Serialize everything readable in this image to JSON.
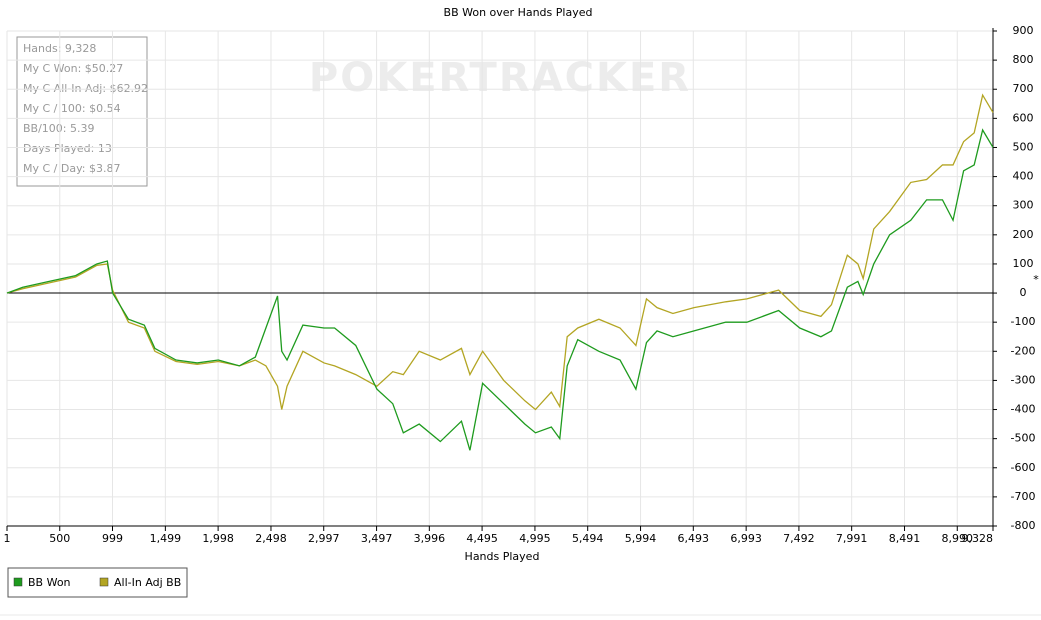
{
  "chart_data": {
    "type": "line",
    "title": "BB Won over Hands Played",
    "xlabel": "Hands Played",
    "axis_marker": "*",
    "watermark": "POKERTRACKER",
    "info": [
      "Hands: 9,328",
      "My C Won: $50.27",
      "My C All-In Adj: $62.92",
      "My C / 100: $0.54",
      "BB/100: 5.39",
      "Days Played: 13",
      "My C / Day: $3.87"
    ],
    "x": [
      1,
      150,
      400,
      650,
      850,
      950,
      1000,
      1150,
      1300,
      1400,
      1600,
      1800,
      2000,
      2200,
      2350,
      2450,
      2560,
      2600,
      2650,
      2800,
      3000,
      3100,
      3300,
      3500,
      3650,
      3750,
      3900,
      4100,
      4300,
      4380,
      4500,
      4700,
      4900,
      5000,
      5150,
      5230,
      5300,
      5400,
      5600,
      5800,
      5950,
      6050,
      6150,
      6300,
      6500,
      6800,
      7000,
      7300,
      7500,
      7700,
      7800,
      7950,
      8050,
      8100,
      8200,
      8350,
      8550,
      8700,
      8850,
      8950,
      9050,
      9150,
      9230,
      9328
    ],
    "series": [
      {
        "name": "BB Won",
        "color": "#1e9b1e",
        "values": [
          0,
          20,
          40,
          60,
          100,
          110,
          0,
          -90,
          -110,
          -190,
          -230,
          -240,
          -230,
          -250,
          -220,
          -120,
          -10,
          -200,
          -230,
          -110,
          -120,
          -120,
          -180,
          -330,
          -380,
          -480,
          -450,
          -510,
          -440,
          -540,
          -310,
          -380,
          -450,
          -480,
          -460,
          -500,
          -250,
          -160,
          -200,
          -230,
          -330,
          -170,
          -130,
          -150,
          -130,
          -100,
          -100,
          -60,
          -120,
          -150,
          -130,
          20,
          40,
          -5,
          100,
          200,
          250,
          320,
          320,
          250,
          420,
          440,
          560,
          500
        ]
      },
      {
        "name": "All-In Adj BB",
        "color": "#b3a523",
        "values": [
          0,
          15,
          35,
          55,
          95,
          100,
          10,
          -100,
          -120,
          -200,
          -235,
          -245,
          -235,
          -250,
          -230,
          -250,
          -320,
          -400,
          -320,
          -200,
          -240,
          -250,
          -280,
          -320,
          -270,
          -280,
          -200,
          -230,
          -190,
          -280,
          -200,
          -300,
          -370,
          -400,
          -340,
          -390,
          -150,
          -120,
          -90,
          -120,
          -180,
          -20,
          -50,
          -70,
          -50,
          -30,
          -20,
          10,
          -60,
          -80,
          -40,
          130,
          100,
          50,
          220,
          280,
          380,
          390,
          440,
          440,
          520,
          550,
          680,
          620
        ]
      }
    ],
    "xlim": [
      1,
      9328
    ],
    "xticks": [
      1,
      500,
      999,
      {
        "value": 1499,
        "label": "1,499"
      },
      {
        "value": 1998,
        "label": "1,998"
      },
      {
        "value": 2498,
        "label": "2,498"
      },
      {
        "value": 2997,
        "label": "2,997"
      },
      {
        "value": 3497,
        "label": "3,497"
      },
      {
        "value": 3996,
        "label": "3,996"
      },
      {
        "value": 4495,
        "label": "4,495"
      },
      {
        "value": 4995,
        "label": "4,995"
      },
      {
        "value": 5494,
        "label": "5,494"
      },
      {
        "value": 5994,
        "label": "5,994"
      },
      {
        "value": 6493,
        "label": "6,493"
      },
      {
        "value": 6993,
        "label": "6,993"
      },
      {
        "value": 7492,
        "label": "7,492"
      },
      {
        "value": 7991,
        "label": "7,991"
      },
      {
        "value": 8491,
        "label": "8,491"
      },
      {
        "value": 8990,
        "label": "8,990"
      },
      {
        "value": 9328,
        "label": "9,328"
      }
    ],
    "ylim": [
      -800,
      900
    ],
    "yticks": [
      -800,
      -700,
      -600,
      -500,
      -400,
      -300,
      -200,
      -100,
      0,
      100,
      200,
      300,
      400,
      500,
      600,
      700,
      800,
      900
    ],
    "grid": true
  }
}
